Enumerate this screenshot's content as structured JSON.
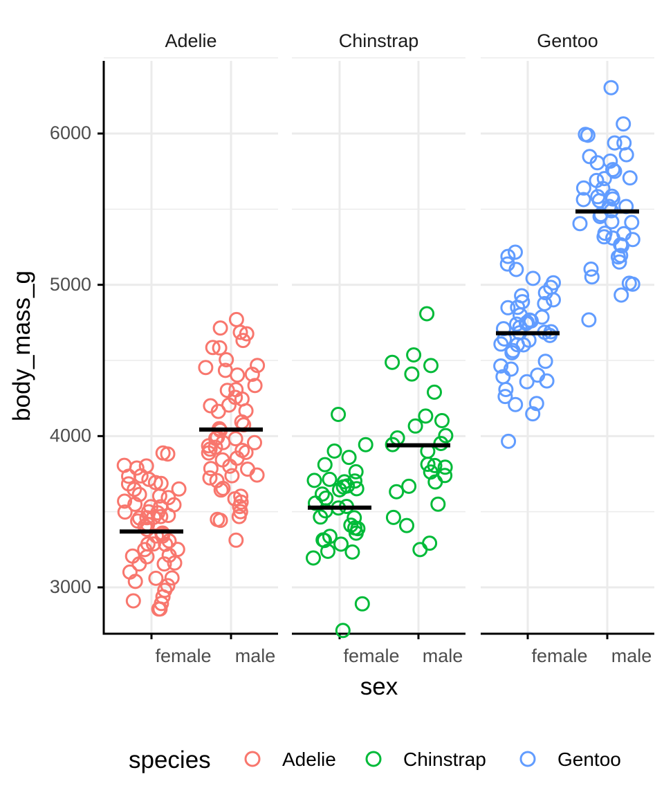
{
  "chart_data": {
    "type": "scatter",
    "subtype": "faceted jitter plot with mean crossbars",
    "title": "",
    "xlabel": "sex",
    "ylabel": "body_mass_g",
    "ylim": [
      2700,
      6500
    ],
    "yticks": [
      3000,
      4000,
      5000,
      6000
    ],
    "y_tick_labels": [
      "3000",
      "4000",
      "5000",
      "6000"
    ],
    "x_categories": [
      "female",
      "male"
    ],
    "grid": true,
    "legend": {
      "title": "species",
      "position": "bottom",
      "entries": [
        {
          "label": "Adelie",
          "color": "#F8766D"
        },
        {
          "label": "Chinstrap",
          "color": "#00BA38"
        },
        {
          "label": "Gentoo",
          "color": "#619CFF"
        }
      ]
    },
    "facets": [
      {
        "name": "Adelie",
        "color": "#F8766D",
        "groups": [
          {
            "sex": "female",
            "mean": 3369,
            "values": [
              2850,
              2875,
              2900,
              2925,
              2950,
              2975,
              3000,
              3050,
              3050,
              3075,
              3100,
              3150,
              3150,
              3175,
              3200,
              3200,
              3200,
              3250,
              3250,
              3275,
              3300,
              3300,
              3300,
              3325,
              3325,
              3350,
              3350,
              3400,
              3400,
              3400,
              3425,
              3450,
              3450,
              3450,
              3475,
              3475,
              3500,
              3500,
              3500,
              3525,
              3550,
              3550,
              3550,
              3575,
              3600,
              3600,
              3625,
              3650,
              3650,
              3700,
              3700,
              3700,
              3725,
              3725,
              3750,
              3800,
              3800,
              3800,
              3900,
              3900
            ]
          },
          {
            "sex": "male",
            "mean": 4043,
            "values": [
              3325,
              3425,
              3450,
              3475,
              3500,
              3550,
              3550,
              3575,
              3600,
              3650,
              3650,
              3700,
              3725,
              3750,
              3750,
              3775,
              3800,
              3800,
              3825,
              3850,
              3875,
              3900,
              3900,
              3900,
              3925,
              3950,
              3950,
              3975,
              3975,
              4000,
              4000,
              4050,
              4050,
              4075,
              4100,
              4150,
              4150,
              4200,
              4200,
              4250,
              4250,
              4300,
              4300,
              4350,
              4400,
              4400,
              4450,
              4450,
              4450,
              4500,
              4600,
              4600,
              4650,
              4675,
              4700,
              4725,
              4775
            ]
          }
        ]
      },
      {
        "name": "Chinstrap",
        "color": "#00BA38",
        "groups": [
          {
            "sex": "female",
            "mean": 3527,
            "values": [
              2700,
              2900,
              3200,
              3250,
              3250,
              3300,
              3300,
              3325,
              3350,
              3350,
              3400,
              3400,
              3400,
              3450,
              3450,
              3500,
              3525,
              3550,
              3550,
              3600,
              3600,
              3650,
              3650,
              3650,
              3675,
              3700,
              3700,
              3700,
              3725,
              3775,
              3800,
              3875,
              3900,
              3950,
              4150
            ]
          },
          {
            "sex": "male",
            "mean": 3939,
            "values": [
              3250,
              3300,
              3400,
              3450,
              3550,
              3650,
              3650,
              3700,
              3750,
              3775,
              3800,
              3800,
              3800,
              3900,
              3950,
              3950,
              3975,
              4000,
              4050,
              4100,
              4150,
              4300,
              4400,
              4450,
              4500,
              4550,
              4800
            ]
          }
        ]
      },
      {
        "name": "Gentoo",
        "color": "#619CFF",
        "groups": [
          {
            "sex": "female",
            "mean": 4680,
            "values": [
              3950,
              4150,
              4200,
              4200,
              4250,
              4300,
              4350,
              4375,
              4400,
              4400,
              4450,
              4450,
              4500,
              4550,
              4575,
              4600,
              4600,
              4600,
              4625,
              4650,
              4650,
              4675,
              4700,
              4700,
              4700,
              4725,
              4725,
              4750,
              4750,
              4750,
              4775,
              4800,
              4800,
              4850,
              4850,
              4875,
              4900,
              4900,
              4925,
              4950,
              5000,
              5000,
              5050,
              5100,
              5150,
              5200,
              5200
            ]
          },
          {
            "sex": "male",
            "mean": 5485,
            "values": [
              4750,
              4925,
              5000,
              5000,
              5050,
              5100,
              5150,
              5200,
              5200,
              5250,
              5250,
              5300,
              5300,
              5300,
              5350,
              5350,
              5400,
              5400,
              5400,
              5450,
              5450,
              5500,
              5500,
              5500,
              5550,
              5550,
              5550,
              5600,
              5600,
              5650,
              5650,
              5700,
              5700,
              5700,
              5750,
              5750,
              5800,
              5800,
              5850,
              5850,
              5950,
              5950,
              6000,
              6000,
              6050,
              6300
            ]
          }
        ]
      }
    ]
  }
}
